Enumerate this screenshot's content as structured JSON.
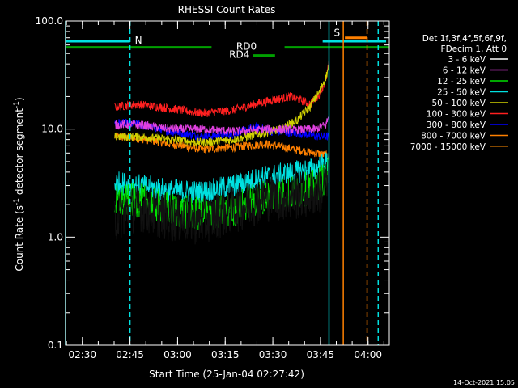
{
  "chart_data": {
    "type": "line",
    "title": "RHESSI Count Rates",
    "xlabel": "Start Time (25-Jan-04 02:27:42)",
    "ylabel_parts": [
      "Count Rate (s",
      "-1",
      " detector segment",
      "-1",
      ")"
    ],
    "y_scale": "log",
    "ylim": [
      0.1,
      100
    ],
    "y_ticks": [
      {
        "value": 0.1,
        "label": "0.1"
      },
      {
        "value": 1,
        "label": "1.0"
      },
      {
        "value": 10,
        "label": "10.0"
      },
      {
        "value": 100,
        "label": "100.0"
      }
    ],
    "x_unit": "minutes from 02:27:42",
    "xlim": [
      -3,
      99
    ],
    "x_ticks": [
      {
        "value": 2.3,
        "label": "02:30"
      },
      {
        "value": 17.3,
        "label": "02:45"
      },
      {
        "value": 32.3,
        "label": "03:00"
      },
      {
        "value": 47.3,
        "label": "03:15"
      },
      {
        "value": 62.3,
        "label": "03:30"
      },
      {
        "value": 77.3,
        "label": "03:45"
      },
      {
        "value": 92.3,
        "label": "04:00"
      }
    ],
    "legend_header": [
      "Det 1f,3f,4f,5f,6f,9f,",
      "FDecim 1, Att 0"
    ],
    "series": [
      {
        "name": "3 - 6 keV",
        "color": "#000000",
        "values": [
          [
            12.5,
            1.5
          ],
          [
            20,
            1.9
          ],
          [
            30,
            1.5
          ],
          [
            40,
            1.4
          ],
          [
            50,
            1.8
          ],
          [
            60,
            2.3
          ],
          [
            70,
            2.4
          ],
          [
            76,
            2.6
          ],
          [
            80,
            3.2
          ]
        ]
      },
      {
        "name": "6 - 12 keV",
        "color": "#e040e0",
        "values": [
          [
            12.5,
            11
          ],
          [
            20,
            11
          ],
          [
            30,
            10
          ],
          [
            40,
            10
          ],
          [
            50,
            9.5
          ],
          [
            60,
            10
          ],
          [
            70,
            9.8
          ],
          [
            76,
            10
          ],
          [
            79,
            11
          ],
          [
            80,
            13
          ]
        ]
      },
      {
        "name": "12 - 25 keV",
        "color": "#00e000",
        "values": [
          [
            12.5,
            2.1
          ],
          [
            20,
            2.2
          ],
          [
            30,
            1.8
          ],
          [
            40,
            1.6
          ],
          [
            50,
            1.8
          ],
          [
            60,
            2.4
          ],
          [
            70,
            2.6
          ],
          [
            76,
            3.0
          ],
          [
            80,
            3.8
          ]
        ]
      },
      {
        "name": "25 - 50 keV",
        "color": "#00e0e0",
        "values": [
          [
            12.5,
            3.2
          ],
          [
            20,
            3.0
          ],
          [
            30,
            2.7
          ],
          [
            40,
            2.6
          ],
          [
            50,
            3.0
          ],
          [
            60,
            3.6
          ],
          [
            70,
            4.0
          ],
          [
            76,
            4.3
          ],
          [
            80,
            5.0
          ]
        ]
      },
      {
        "name": "50 - 100 keV",
        "color": "#d0d000",
        "values": [
          [
            12.5,
            8.5
          ],
          [
            20,
            8.5
          ],
          [
            30,
            8.0
          ],
          [
            40,
            7.5
          ],
          [
            50,
            8.0
          ],
          [
            58,
            9.0
          ],
          [
            65,
            10
          ],
          [
            70,
            12
          ],
          [
            74,
            16
          ],
          [
            77,
            22
          ],
          [
            79,
            30
          ],
          [
            80,
            38
          ]
        ]
      },
      {
        "name": "100 - 300 keV",
        "color": "#ff2020",
        "values": [
          [
            12.5,
            16
          ],
          [
            20,
            17
          ],
          [
            30,
            15.5
          ],
          [
            40,
            14
          ],
          [
            50,
            15
          ],
          [
            60,
            18
          ],
          [
            68,
            20
          ],
          [
            74,
            17
          ],
          [
            77,
            21
          ],
          [
            79,
            28
          ],
          [
            80,
            40
          ]
        ]
      },
      {
        "name": "300 - 800 keV",
        "color": "#0000ff",
        "values": [
          [
            12.5,
            11.5
          ],
          [
            20,
            11
          ],
          [
            30,
            9.5
          ],
          [
            40,
            8.5
          ],
          [
            50,
            9
          ],
          [
            57,
            10.5
          ],
          [
            62,
            9.5
          ],
          [
            70,
            9.2
          ],
          [
            76,
            8.6
          ],
          [
            80,
            8.5
          ]
        ]
      },
      {
        "name": "800 - 7000 keV",
        "color": "#ff8000",
        "values": [
          [
            12.5,
            8.5
          ],
          [
            20,
            8.2
          ],
          [
            30,
            7.3
          ],
          [
            40,
            6.5
          ],
          [
            50,
            6.8
          ],
          [
            60,
            7.3
          ],
          [
            70,
            6.4
          ],
          [
            76,
            6.0
          ],
          [
            80,
            5.6
          ]
        ]
      },
      {
        "name": "7000 - 15000 keV",
        "color": "#b06000",
        "values": []
      }
    ],
    "flags": [
      {
        "name": "N",
        "color": "#00e0e0",
        "start": -3,
        "end": 17.3,
        "value": 65
      },
      {
        "name": "S",
        "color": "#ff8000",
        "start": 85,
        "end": 92,
        "value": 70
      },
      {
        "name": "RD0",
        "color": "#00a000",
        "start": -3,
        "end": 99,
        "value": 57
      },
      {
        "name": "RD4",
        "color": "#00a000",
        "start": 56,
        "end": 63,
        "value": 48
      }
    ],
    "flag_cyan_segments": [
      {
        "start": 78,
        "end": 98,
        "value": 65
      }
    ],
    "vlines": [
      {
        "x": -3,
        "color": "#00e0e0",
        "dashed": false
      },
      {
        "x": 17.3,
        "color": "#00e0e0",
        "dashed": true
      },
      {
        "x": 80,
        "color": "#00e0e0",
        "dashed": false
      },
      {
        "x": 84.5,
        "color": "#ff8000",
        "dashed": false
      },
      {
        "x": 92,
        "color": "#ff8000",
        "dashed": true
      },
      {
        "x": 95.5,
        "color": "#00e0e0",
        "dashed": true
      }
    ],
    "grid": false,
    "legend_placement": "right"
  },
  "timestamp": "14-Oct-2021 15:05"
}
